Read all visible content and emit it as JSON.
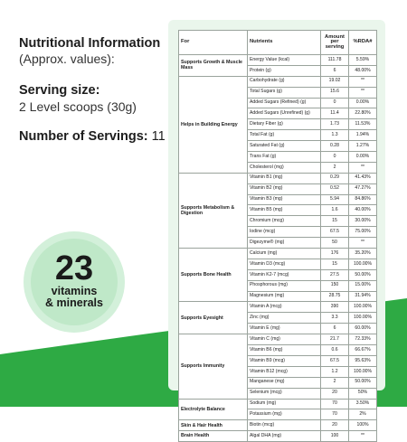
{
  "colors": {
    "green_accent": "#2eaa44",
    "card_bg": "#eaf6ec",
    "badge_bg": "#bfe8c8"
  },
  "info": {
    "title": "Nutritional Information",
    "subtitle": "(Approx. values):"
  },
  "serving": {
    "title": "Serving size:",
    "value": "2 Level scoops (30g)"
  },
  "servings": {
    "label": "Number of Servings:",
    "value": "11"
  },
  "badge": {
    "number": "23",
    "line1": "vitamins",
    "line2": "& minerals"
  },
  "table": {
    "headers": {
      "group": "For",
      "nutrient": "Nutrients",
      "amount": "Amount per serving",
      "rda": "%RDA#"
    },
    "groups": [
      {
        "label": "Supports Growth & Muscle Mass",
        "rows": [
          [
            "Energy Value (kcal)",
            "111.78",
            "5.59%"
          ],
          [
            "Protein (g)",
            "6",
            "48.00%"
          ]
        ]
      },
      {
        "label": "Helps in Building Energy",
        "rows": [
          [
            "Carbohydrate (g)",
            "19.02",
            "**"
          ],
          [
            "Total Sugars (g)",
            "15.6",
            "**"
          ],
          [
            "Added Sugars (Refined) (g)",
            "0",
            "0.00%"
          ],
          [
            "Added Sugars (Unrefined) (g)",
            "11.4",
            "22.80%"
          ],
          [
            "Dietary Fiber (g)",
            "1.73",
            "11.53%"
          ],
          [
            "Total Fat (g)",
            "1.3",
            "1.94%"
          ],
          [
            "Saturated Fat (g)",
            "0.28",
            "1.27%"
          ],
          [
            "Trans Fat (g)",
            "0",
            "0.00%"
          ],
          [
            "Cholesterol (mg)",
            "2",
            "**"
          ]
        ]
      },
      {
        "label": "Supports Metabolism & Digestion",
        "rows": [
          [
            "Vitamin B1 (mg)",
            "0.29",
            "41.43%"
          ],
          [
            "Vitamin B2 (mg)",
            "0.52",
            "47.27%"
          ],
          [
            "Vitamin B3 (mg)",
            "5.94",
            "84.86%"
          ],
          [
            "Vitamin B5 (mg)",
            "1.6",
            "40.00%"
          ],
          [
            "Chromium (mcg)",
            "15",
            "30.00%"
          ],
          [
            "Iodine (mcg)",
            "67.5",
            "75.00%"
          ],
          [
            "Digezyme® (mg)",
            "50",
            "**"
          ]
        ]
      },
      {
        "label": "Supports Bone Health",
        "rows": [
          [
            "Calcium (mg)",
            "176",
            "35.20%"
          ],
          [
            "Vitamin D3 (mcg)",
            "15",
            "100.00%"
          ],
          [
            "Vitamin K2-7 (mcg)",
            "27.5",
            "50.00%"
          ],
          [
            "Phosphorous (mg)",
            "150",
            "15.00%"
          ],
          [
            "Magnesium (mg)",
            "28.75",
            "31.94%"
          ]
        ]
      },
      {
        "label": "Supports Eyesight",
        "rows": [
          [
            "Vitamin A (mcg)",
            "390",
            "100.00%"
          ],
          [
            "Zinc (mg)",
            "3.3",
            "100.00%"
          ],
          [
            "Vitamin E (mg)",
            "6",
            "60.00%"
          ]
        ]
      },
      {
        "label": "Supports Immunity",
        "rows": [
          [
            "Vitamin C (mg)",
            "21.7",
            "72.33%"
          ],
          [
            "Vitamin B6 (mg)",
            "0.6",
            "66.67%"
          ],
          [
            "Vitamin B9 (mcg)",
            "67.5",
            "95.63%"
          ],
          [
            "Vitamin B12 (mcg)",
            "1.2",
            "100.00%"
          ],
          [
            "Manganese (mg)",
            "2",
            "50.00%"
          ],
          [
            "Selenium (mcg)",
            "20",
            "50%"
          ]
        ]
      },
      {
        "label": "Electrolyte Balance",
        "rows": [
          [
            "Sodium (mg)",
            "70",
            "3.50%"
          ],
          [
            "Potassium (mg)",
            "70",
            "2%"
          ]
        ]
      },
      {
        "label": "Skin & Hair Health",
        "rows": [
          [
            "Biotin (mcg)",
            "20",
            "100%"
          ]
        ]
      },
      {
        "label": "Brain Health",
        "rows": [
          [
            "Algal DHA (mg)",
            "100",
            "**"
          ]
        ]
      }
    ]
  }
}
